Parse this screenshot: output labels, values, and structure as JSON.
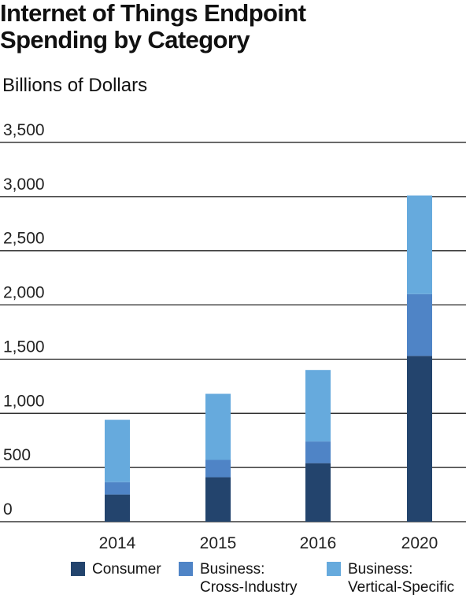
{
  "title_lines": [
    "Internet of Things Endpoint",
    "Spending by Category"
  ],
  "subtitle": "Billions of Dollars",
  "colors": {
    "consumer": "#23446d",
    "cross_industry": "#4f84c6",
    "vertical_specific": "#66aadd",
    "gridline": "#111111"
  },
  "legend": [
    {
      "lines": [
        "Consumer"
      ],
      "color": "#23446d"
    },
    {
      "lines": [
        "Business:",
        "Cross-Industry"
      ],
      "color": "#4f84c6"
    },
    {
      "lines": [
        "Business:",
        "Vertical-Specific"
      ],
      "color": "#66aadd"
    }
  ],
  "chart_data": {
    "type": "bar",
    "stacked": true,
    "title": "Internet of Things Endpoint Spending by Category",
    "ylabel": "Billions of Dollars",
    "categories": [
      "2014",
      "2015",
      "2016",
      "2020"
    ],
    "series": [
      {
        "name": "Consumer",
        "values": [
          250,
          410,
          540,
          1530
        ]
      },
      {
        "name": "Business: Cross-Industry",
        "values": [
          115,
          160,
          200,
          570
        ]
      },
      {
        "name": "Business: Vertical-Specific",
        "values": [
          575,
          610,
          660,
          910
        ]
      }
    ],
    "ylim": [
      0,
      3500
    ],
    "yticks": [
      "0",
      "500",
      "1,000",
      "1,500",
      "2,000",
      "2,500",
      "3,000",
      "3,500"
    ],
    "grid": true,
    "legend_position": "bottom"
  }
}
